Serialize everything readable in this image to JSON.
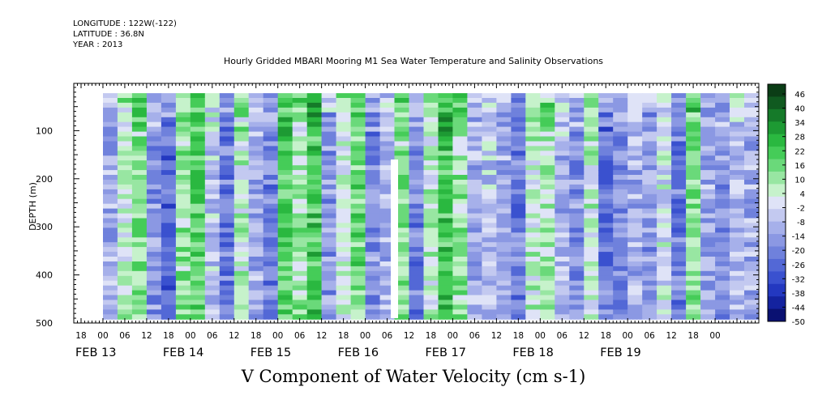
{
  "header": {
    "longitude": "LONGITUDE : 122W(-122)",
    "latitude": "LATITUDE : 36.8N",
    "year": "YEAR : 2013",
    "title": "Hourly Gridded MBARI Mooring M1 Sea Water Temperature and Salinity Observations"
  },
  "chart_data": {
    "type": "heatmap",
    "title": "Hourly Gridded MBARI Mooring M1 Sea Water Temperature and Salinity Observations",
    "xlabel": "",
    "ylabel": "DEPTH (m)",
    "caption": "V Component of Water Velocity (cm s-1)",
    "y_axis": {
      "range": [
        0,
        500
      ],
      "inverted": true,
      "ticks": [
        100,
        200,
        300,
        400,
        500
      ]
    },
    "x_axis": {
      "range_hours": [
        -8,
        180
      ],
      "hour_ticks": [
        "18",
        "00",
        "06",
        "12",
        "18",
        "00",
        "06",
        "12",
        "18",
        "00",
        "06",
        "12",
        "18",
        "00",
        "06",
        "12",
        "18",
        "00",
        "06",
        "12",
        "18",
        "00",
        "06",
        "12",
        "18",
        "00",
        "06",
        "12",
        "18",
        "00"
      ],
      "day_labels": [
        "FEB 13",
        "FEB 14",
        "FEB 15",
        "FEB 16",
        "FEB 17",
        "FEB 18",
        "FEB 19"
      ]
    },
    "colorbar": {
      "labels": [
        "46",
        "40",
        "34",
        "28",
        "22",
        "16",
        "10",
        "4",
        "-2",
        "-8",
        "-14",
        "-20",
        "-26",
        "-32",
        "-38",
        "-44",
        "-50"
      ],
      "colors": [
        "#0b3d16",
        "#105a20",
        "#157a29",
        "#1d9a33",
        "#2ab840",
        "#45cc58",
        "#6ad97a",
        "#98e6a2",
        "#c6f2cb",
        "#dfe3f7",
        "#c3c9f0",
        "#a6b0ea",
        "#8b98e3",
        "#6f81dc",
        "#5368d6",
        "#3a51cf",
        "#2338c0",
        "#14239f",
        "#0a1172"
      ]
    },
    "data_start_hour": 0,
    "data_end_hour": 180,
    "grid": false,
    "legend": "right colorbar",
    "vertical_bands": [
      {
        "x": 3,
        "v": -10
      },
      {
        "x": 7,
        "v": 5
      },
      {
        "x": 11,
        "v": 15
      },
      {
        "x": 15,
        "v": -15
      },
      {
        "x": 19,
        "v": -25
      },
      {
        "x": 23,
        "v": 12
      },
      {
        "x": 27,
        "v": 20
      },
      {
        "x": 31,
        "v": -5
      },
      {
        "x": 35,
        "v": -22
      },
      {
        "x": 39,
        "v": 8
      },
      {
        "x": 43,
        "v": -12
      },
      {
        "x": 47,
        "v": -20
      },
      {
        "x": 51,
        "v": 18
      },
      {
        "x": 55,
        "v": 10
      },
      {
        "x": 59,
        "v": 22
      },
      {
        "x": 63,
        "v": -14
      },
      {
        "x": 67,
        "v": 4
      },
      {
        "x": 71,
        "v": 16
      },
      {
        "x": 75,
        "v": -18
      },
      {
        "x": 79,
        "v": -8
      },
      {
        "x": 83,
        "v": 14
      },
      {
        "x": 87,
        "v": -20
      },
      {
        "x": 91,
        "v": 6
      },
      {
        "x": 95,
        "v": 24
      },
      {
        "x": 99,
        "v": 12
      },
      {
        "x": 103,
        "v": -10
      },
      {
        "x": 107,
        "v": -4
      },
      {
        "x": 111,
        "v": -12
      },
      {
        "x": 115,
        "v": -20
      },
      {
        "x": 119,
        "v": 6
      },
      {
        "x": 123,
        "v": 10
      },
      {
        "x": 127,
        "v": -8
      },
      {
        "x": 131,
        "v": -16
      },
      {
        "x": 135,
        "v": 4
      },
      {
        "x": 139,
        "v": -22
      },
      {
        "x": 143,
        "v": -18
      },
      {
        "x": 147,
        "v": -10
      },
      {
        "x": 151,
        "v": -14
      },
      {
        "x": 155,
        "v": 0
      },
      {
        "x": 159,
        "v": -20
      },
      {
        "x": 163,
        "v": 14
      },
      {
        "x": 167,
        "v": -12
      },
      {
        "x": 171,
        "v": -16
      },
      {
        "x": 175,
        "v": -6
      },
      {
        "x": 179,
        "v": -10
      }
    ],
    "missing_data": [
      {
        "start_hour": 79,
        "end_hour": 81,
        "top_depth": 160,
        "bottom_depth": 490
      }
    ]
  }
}
